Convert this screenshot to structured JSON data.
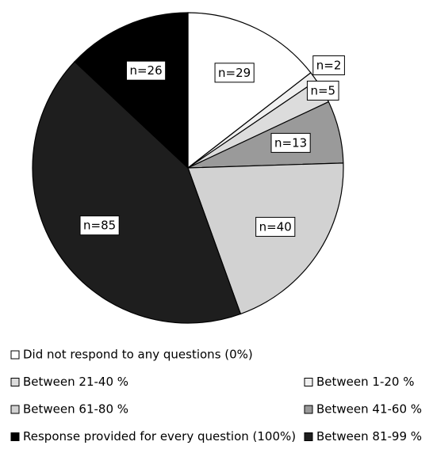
{
  "chart_data": {
    "type": "pie",
    "categories": [
      "Did not respond to any questions (0%)",
      "Between 1-20 %",
      "Between 21-40 %",
      "Between 41-60 %",
      "Between 61-80 %",
      "Between 81-99 %",
      "Response provided for every question (100%)"
    ],
    "values": [
      29,
      2,
      5,
      13,
      40,
      85,
      26
    ],
    "value_labels": [
      "n=29",
      "n=2",
      "n=5",
      "n=13",
      "n=40",
      "n=85",
      "n=26"
    ],
    "colors": [
      "#ffffff",
      "#f0f0f0",
      "#dcdcdc",
      "#9a9a9a",
      "#d2d2d2",
      "#1e1e1e",
      "#000000"
    ],
    "legend": "bottom"
  }
}
